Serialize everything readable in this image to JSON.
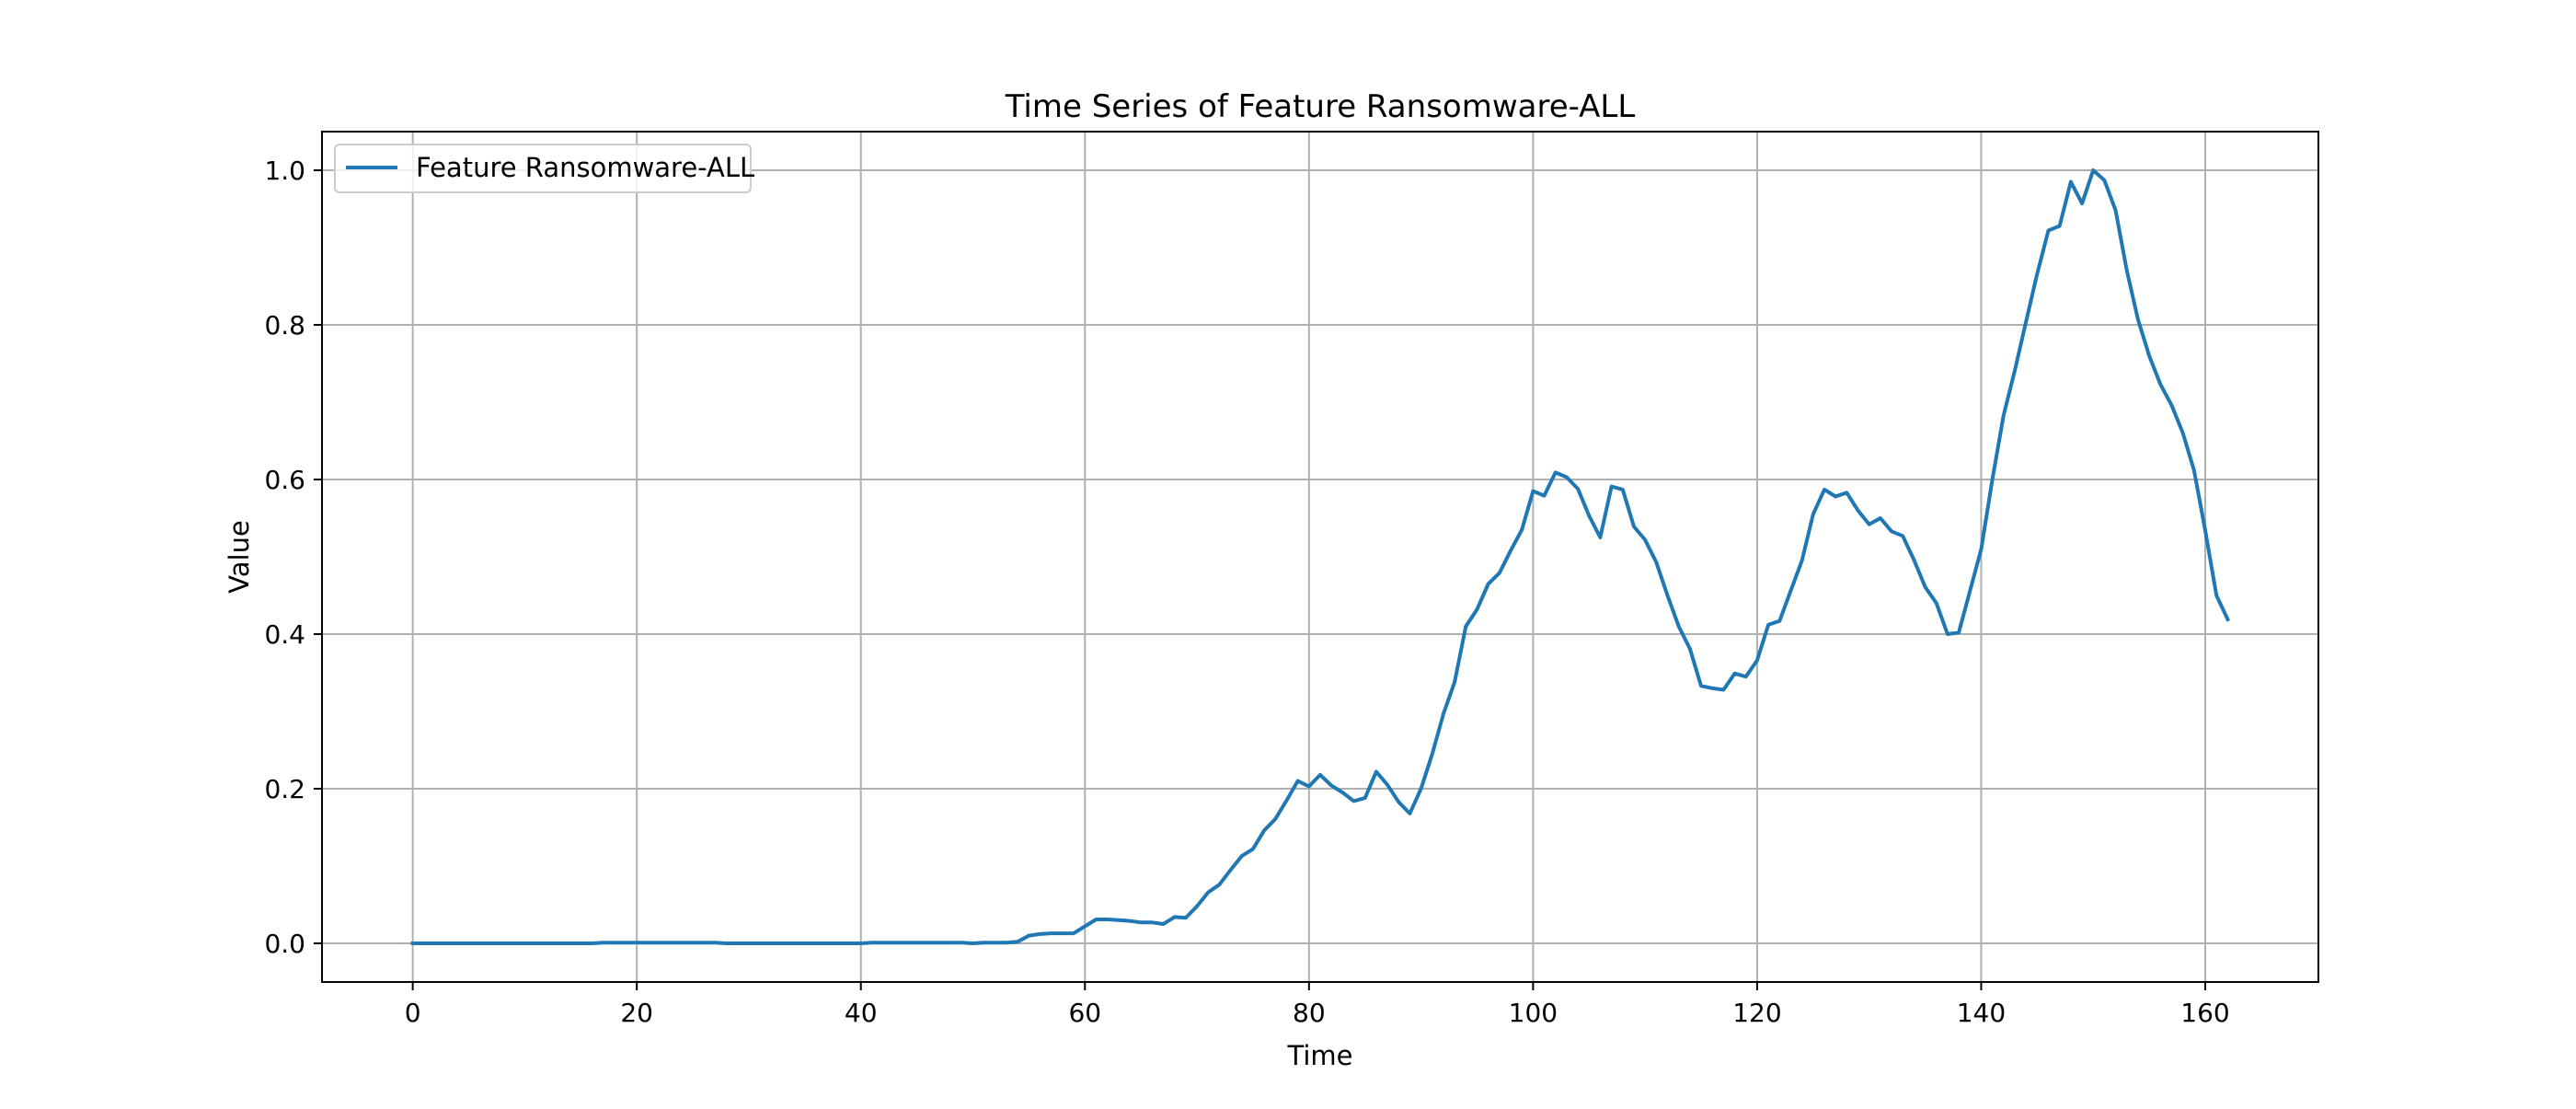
{
  "chart_data": {
    "type": "line",
    "title": "Time Series of Feature Ransomware-ALL",
    "xlabel": "Time",
    "ylabel": "Value",
    "xlim": [
      -8.1,
      170.1
    ],
    "ylim": [
      -0.05,
      1.05
    ],
    "xticks": [
      0,
      20,
      40,
      60,
      80,
      100,
      120,
      140,
      160
    ],
    "yticks": [
      0.0,
      0.2,
      0.4,
      0.6,
      0.8,
      1.0
    ],
    "xtick_labels": [
      "0",
      "20",
      "40",
      "60",
      "80",
      "100",
      "120",
      "140",
      "160"
    ],
    "ytick_labels": [
      "0.0",
      "0.2",
      "0.4",
      "0.6",
      "0.8",
      "1.0"
    ],
    "grid": true,
    "legend_position": "upper-left",
    "series": [
      {
        "name": "Feature Ransomware-ALL",
        "color": "#1f77b4",
        "x": [
          0,
          1,
          2,
          3,
          4,
          5,
          6,
          7,
          8,
          9,
          10,
          11,
          12,
          13,
          14,
          15,
          16,
          17,
          18,
          19,
          20,
          21,
          22,
          23,
          24,
          25,
          26,
          27,
          28,
          29,
          30,
          31,
          32,
          33,
          34,
          35,
          36,
          37,
          38,
          39,
          40,
          41,
          42,
          43,
          44,
          45,
          46,
          47,
          48,
          49,
          50,
          51,
          52,
          53,
          54,
          55,
          56,
          57,
          58,
          59,
          60,
          61,
          62,
          63,
          64,
          65,
          66,
          67,
          68,
          69,
          70,
          71,
          72,
          73,
          74,
          75,
          76,
          77,
          78,
          79,
          80,
          81,
          82,
          83,
          84,
          85,
          86,
          87,
          88,
          89,
          90,
          91,
          92,
          93,
          94,
          95,
          96,
          97,
          98,
          99,
          100,
          101,
          102,
          103,
          104,
          105,
          106,
          107,
          108,
          109,
          110,
          111,
          112,
          113,
          114,
          115,
          116,
          117,
          118,
          119,
          120,
          121,
          122,
          123,
          124,
          125,
          126,
          127,
          128,
          129,
          130,
          131,
          132,
          133,
          134,
          135,
          136,
          137,
          138,
          139,
          140,
          141,
          142,
          143,
          144,
          145,
          146,
          147,
          148,
          149,
          150,
          151,
          152,
          153,
          154,
          155,
          156,
          157,
          158,
          159,
          160,
          161,
          162
        ],
        "y": [
          0.0,
          0.0,
          0.0,
          0.0,
          0.0,
          0.0,
          0.0,
          0.0,
          0.0,
          0.0,
          0.0,
          0.0,
          0.0,
          0.0,
          0.0,
          0.0,
          0.0,
          0.001,
          0.001,
          0.001,
          0.001,
          0.001,
          0.001,
          0.001,
          0.001,
          0.001,
          0.001,
          0.001,
          0.0,
          0.0,
          0.0,
          0.0,
          0.0,
          0.0,
          0.0,
          0.0,
          0.0,
          0.0,
          0.0,
          0.0,
          0.0,
          0.001,
          0.001,
          0.001,
          0.001,
          0.001,
          0.001,
          0.001,
          0.001,
          0.001,
          0.0,
          0.001,
          0.001,
          0.001,
          0.002,
          0.01,
          0.012,
          0.013,
          0.013,
          0.013,
          0.022,
          0.031,
          0.031,
          0.03,
          0.029,
          0.027,
          0.027,
          0.025,
          0.034,
          0.033,
          0.048,
          0.066,
          0.076,
          0.095,
          0.113,
          0.122,
          0.146,
          0.161,
          0.185,
          0.21,
          0.203,
          0.218,
          0.204,
          0.195,
          0.184,
          0.188,
          0.222,
          0.205,
          0.183,
          0.168,
          0.2,
          0.245,
          0.297,
          0.338,
          0.41,
          0.432,
          0.465,
          0.479,
          0.508,
          0.535,
          0.585,
          0.579,
          0.609,
          0.603,
          0.588,
          0.553,
          0.525,
          0.591,
          0.587,
          0.539,
          0.522,
          0.493,
          0.45,
          0.41,
          0.381,
          0.333,
          0.33,
          0.328,
          0.349,
          0.345,
          0.366,
          0.412,
          0.417,
          0.456,
          0.495,
          0.555,
          0.587,
          0.578,
          0.583,
          0.56,
          0.542,
          0.55,
          0.533,
          0.527,
          0.496,
          0.461,
          0.44,
          0.4,
          0.402,
          0.456,
          0.51,
          0.6,
          0.683,
          0.741,
          0.804,
          0.866,
          0.922,
          0.928,
          0.985,
          0.957,
          1.0,
          0.987,
          0.948,
          0.87,
          0.807,
          0.76,
          0.723,
          0.696,
          0.66,
          0.612,
          0.534,
          0.45,
          0.419
        ]
      }
    ]
  }
}
